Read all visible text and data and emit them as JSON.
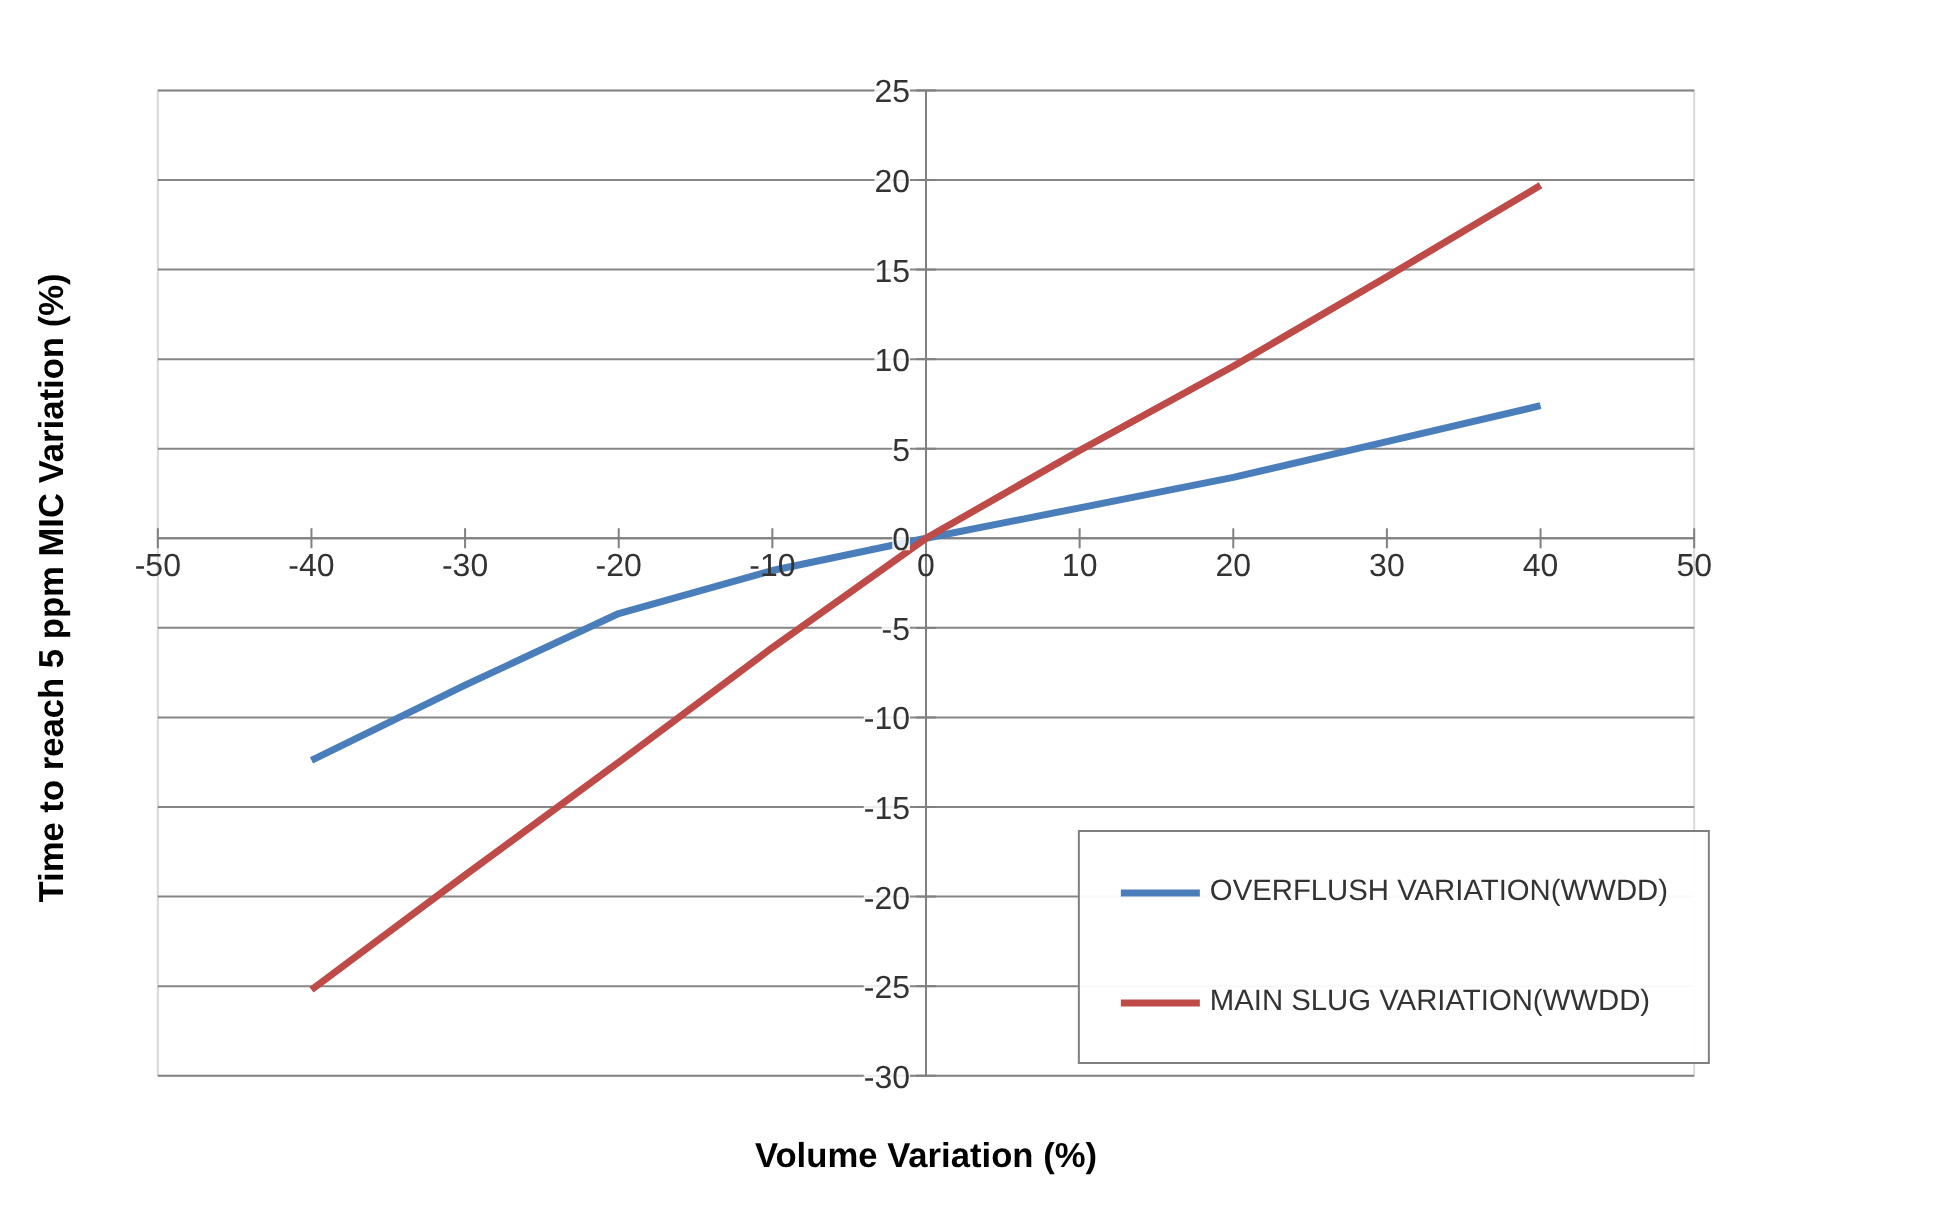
{
  "chart_data": {
    "type": "line",
    "xlabel": "Volume Variation (%)",
    "ylabel": "Time to reach 5 ppm MIC Variation (%)",
    "x": [
      -40,
      -30,
      -20,
      -10,
      0,
      10,
      20,
      30,
      40
    ],
    "series": [
      {
        "name": "OVERFLUSH VARIATION(WWDD)",
        "color": "#4a7ebb",
        "values": [
          -12.4,
          -8.2,
          -4.2,
          -1.8,
          0,
          1.7,
          3.4,
          5.4,
          7.4
        ]
      },
      {
        "name": "MAIN SLUG VARIATION(WWDD)",
        "color": "#be4b48",
        "values": [
          -25.2,
          -18.8,
          -12.5,
          -6.1,
          0,
          4.9,
          9.6,
          14.6,
          19.7
        ]
      }
    ],
    "xlim": [
      -50,
      50
    ],
    "ylim": [
      -30,
      25
    ],
    "xticks": [
      -50,
      -40,
      -30,
      -20,
      -10,
      0,
      10,
      20,
      30,
      40,
      50
    ],
    "yticks": [
      -30,
      -25,
      -20,
      -15,
      -10,
      -5,
      0,
      5,
      10,
      15,
      20,
      25
    ],
    "grid": "y",
    "legend": "bottom right",
    "marker": "none",
    "line_style": "solid"
  }
}
